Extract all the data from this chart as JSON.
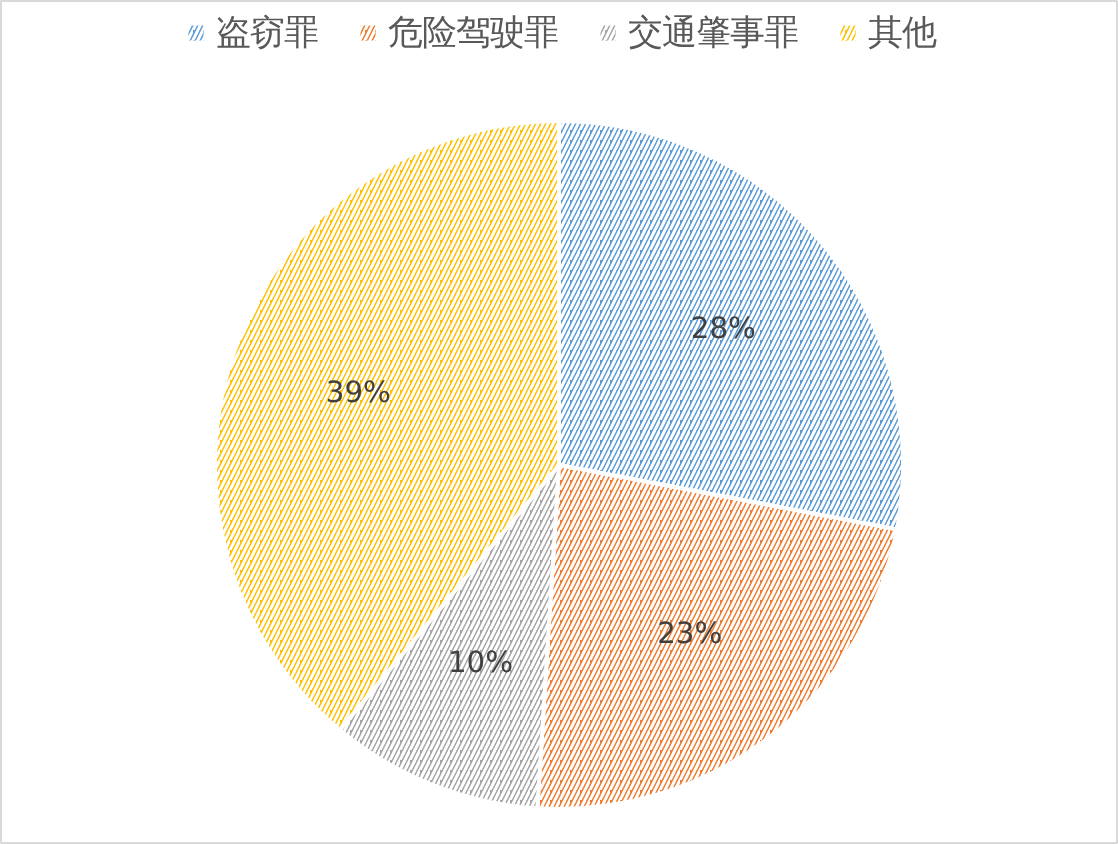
{
  "chart_data": {
    "type": "pie",
    "categories": [
      "盗窃罪",
      "危险驾驶罪",
      "交通肇事罪",
      "其他"
    ],
    "values": [
      28,
      23,
      10,
      39
    ],
    "value_labels": [
      "28%",
      "23%",
      "10%",
      "39%"
    ],
    "colors": [
      "#5b9bd5",
      "#ed7d31",
      "#a5a5a5",
      "#ffc000"
    ],
    "legend": "top"
  }
}
